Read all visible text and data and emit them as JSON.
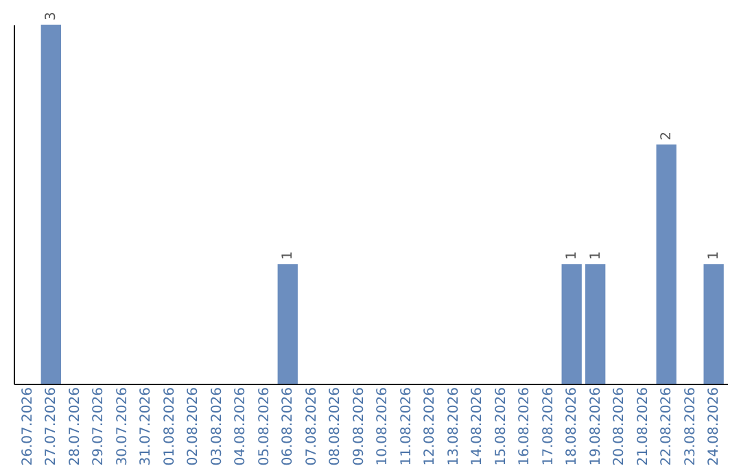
{
  "chart_data": {
    "type": "bar",
    "categories": [
      "26.07.2026",
      "27.07.2026",
      "28.07.2026",
      "29.07.2026",
      "30.07.2026",
      "31.07.2026",
      "01.08.2026",
      "02.08.2026",
      "03.08.2026",
      "04.08.2026",
      "05.08.2026",
      "06.08.2026",
      "07.08.2026",
      "08.08.2026",
      "09.08.2026",
      "10.08.2026",
      "11.08.2026",
      "12.08.2026",
      "13.08.2026",
      "14.08.2026",
      "15.08.2026",
      "16.08.2026",
      "17.08.2026",
      "18.08.2026",
      "19.08.2026",
      "20.08.2026",
      "21.08.2026",
      "22.08.2026",
      "23.08.2026",
      "24.08.2026"
    ],
    "values": [
      0,
      3,
      0,
      0,
      0,
      0,
      0,
      0,
      0,
      0,
      0,
      1,
      0,
      0,
      0,
      0,
      0,
      0,
      0,
      0,
      0,
      0,
      0,
      1,
      1,
      0,
      0,
      2,
      0,
      1
    ],
    "value_labels": [
      null,
      "3",
      null,
      null,
      null,
      null,
      null,
      null,
      null,
      null,
      null,
      "1",
      null,
      null,
      null,
      null,
      null,
      null,
      null,
      null,
      null,
      null,
      null,
      "1",
      "1",
      null,
      null,
      "2",
      null,
      "1"
    ],
    "color": "#6c8ebf",
    "grid": false,
    "tick_labels": "x"
  }
}
